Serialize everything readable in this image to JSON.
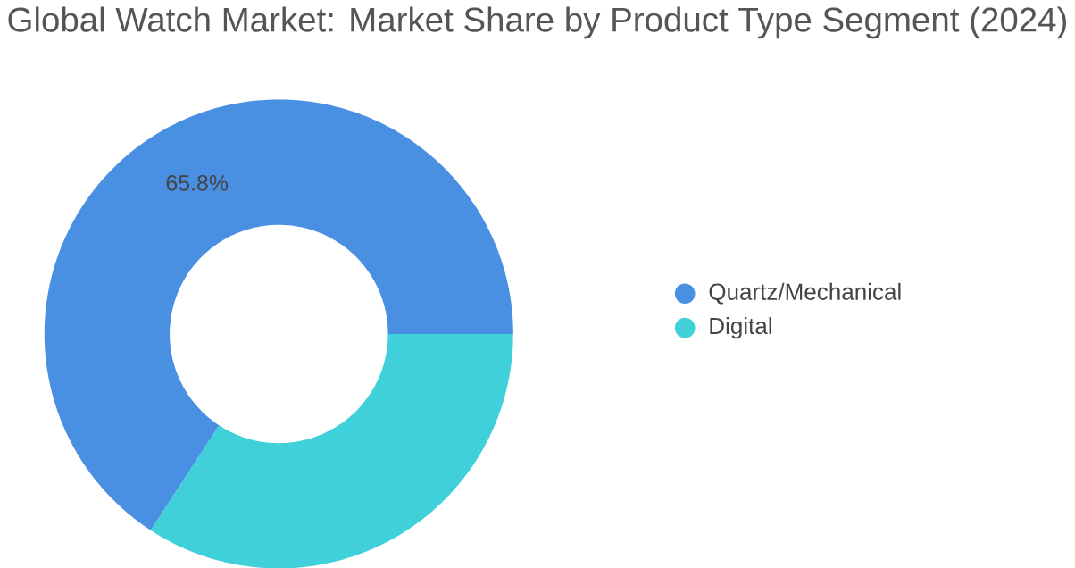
{
  "chart_data": {
    "type": "donut",
    "title": "Global Watch Market: Market Share by Product Type Segment (2024)",
    "categories": [
      "Quartz/Mechanical",
      "Digital"
    ],
    "values": [
      65.8,
      34.2
    ],
    "colors": [
      "#4a90e2",
      "#3fd0d9"
    ],
    "value_labels": [
      "65.8%",
      null
    ],
    "legend": "right"
  }
}
